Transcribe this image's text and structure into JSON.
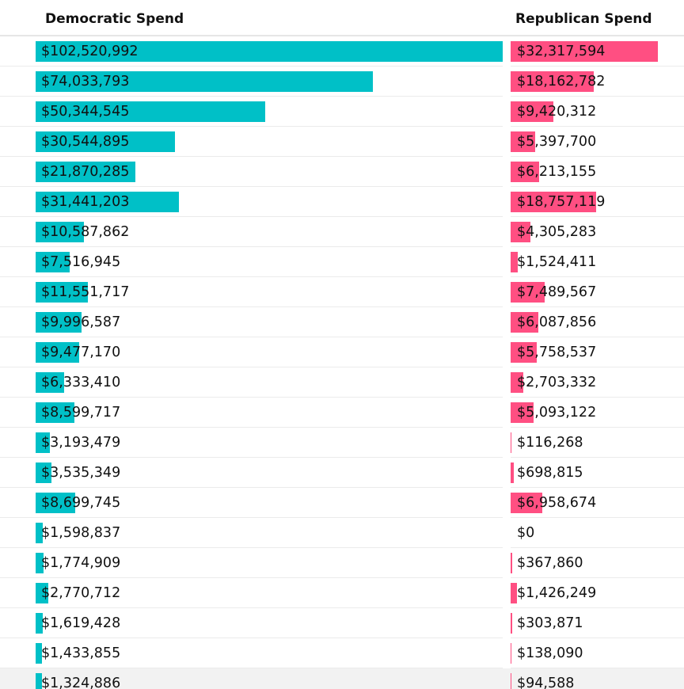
{
  "chart_data": {
    "type": "bar",
    "orientation": "horizontal",
    "series": [
      {
        "name": "Democratic Spend",
        "color": "#00c0c7",
        "values": [
          102520992,
          74033793,
          50344545,
          30544895,
          21870285,
          31441203,
          10587862,
          7516945,
          11551717,
          9996587,
          9477170,
          6333410,
          8599717,
          3193479,
          3535349,
          8699745,
          1598837,
          1774909,
          2770712,
          1619428,
          1433855,
          1324886
        ],
        "labels": [
          "$102,520,992",
          "$74,033,793",
          "$50,344,545",
          "$30,544,895",
          "$21,870,285",
          "$31,441,203",
          "$10,587,862",
          "$7,516,945",
          "$11,551,717",
          "$9,996,587",
          "$9,477,170",
          "$6,333,410",
          "$8,599,717",
          "$3,193,479",
          "$3,535,349",
          "$8,699,745",
          "$1,598,837",
          "$1,774,909",
          "$2,770,712",
          "$1,619,428",
          "$1,433,855",
          "$1,324,886"
        ]
      },
      {
        "name": "Republican Spend",
        "color": "#ff4f82",
        "values": [
          32317594,
          18162782,
          9420312,
          5397700,
          6213155,
          18757119,
          4305283,
          1524411,
          7489567,
          6087856,
          5758537,
          2703332,
          5093122,
          116268,
          698815,
          6958674,
          0,
          367860,
          1426249,
          303871,
          138090,
          94588
        ],
        "labels": [
          "$32,317,594",
          "$18,162,782",
          "$9,420,312",
          "$5,397,700",
          "$6,213,155",
          "$18,757,119",
          "$4,305,283",
          "$1,524,411",
          "$7,489,567",
          "$6,087,856",
          "$5,758,537",
          "$2,703,332",
          "$5,093,122",
          "$116,268",
          "$698,815",
          "$6,958,674",
          "$0",
          "$367,860",
          "$1,426,249",
          "$303,871",
          "$138,090",
          "$94,588"
        ]
      }
    ],
    "xlim": [
      0,
      102520992
    ],
    "shaded_row": 21
  }
}
